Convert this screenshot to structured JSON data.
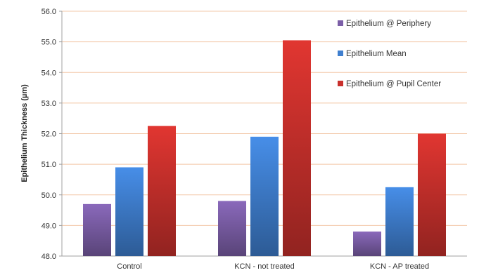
{
  "chart_data": {
    "type": "bar",
    "title": "",
    "xlabel": "",
    "ylabel": "Epithelium Thickness (µm)",
    "categories": [
      "Control",
      "KCN - not treated",
      "KCN - AP treated"
    ],
    "series": [
      {
        "name": "Epithelium @ Periphery",
        "color": "#7b5ea7",
        "values": [
          49.7,
          49.8,
          48.8
        ]
      },
      {
        "name": "Epithelium Mean",
        "color": "#3f7fcf",
        "values": [
          50.9,
          51.9,
          50.25
        ]
      },
      {
        "name": "Epithelium @ Pupil Center",
        "color": "#c9302c",
        "values": [
          52.25,
          55.05,
          52.0
        ]
      }
    ],
    "ylim": [
      48.0,
      56.0
    ],
    "yticks": [
      "48.0",
      "49.0",
      "50.0",
      "51.0",
      "52.0",
      "53.0",
      "54.0",
      "55.0",
      "56.0"
    ],
    "grid": true,
    "grid_color": "#f3c8a8",
    "legend_position": "top-right"
  }
}
